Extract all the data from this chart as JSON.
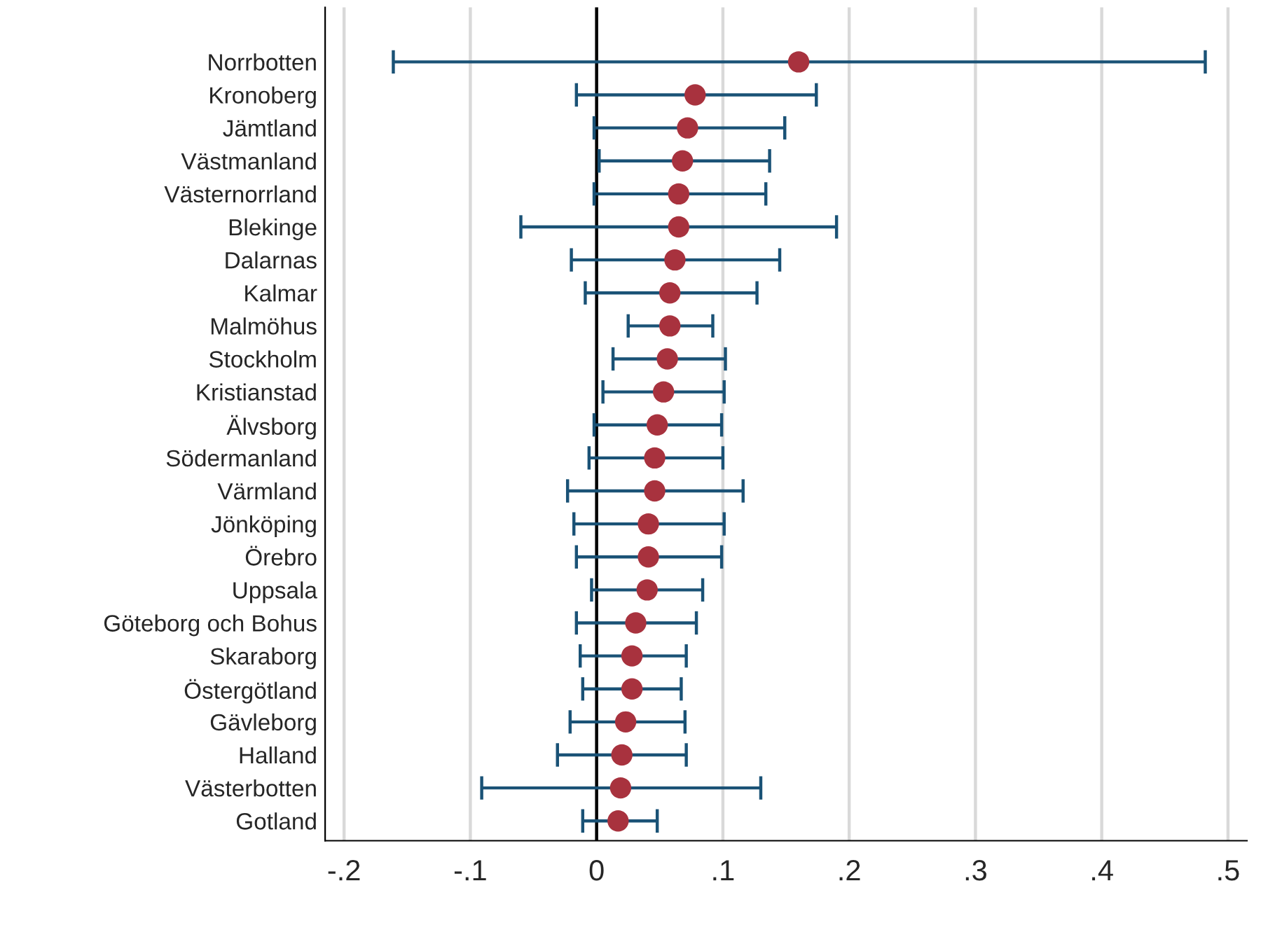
{
  "chart_data": {
    "type": "scatter",
    "orientation": "horizontal",
    "marker": "circle",
    "grid": "x",
    "categories": [
      "Norrbotten",
      "Kronoberg",
      "Jämtland",
      "Västmanland",
      "Västernorrland",
      "Blekinge",
      "Dalarnas",
      "Kalmar",
      "Malmöhus",
      "Stockholm",
      "Kristianstad",
      "Älvsborg",
      "Södermanland",
      "Värmland",
      "Jönköping",
      "Örebro",
      "Uppsala",
      "Göteborg och Bohus",
      "Skaraborg",
      "Östergötland",
      "Gävleborg",
      "Halland",
      "Västerbotten",
      "Gotland"
    ],
    "series": [
      {
        "color": "#a8323e",
        "values": [
          0.16,
          0.078,
          0.072,
          0.068,
          0.065,
          0.065,
          0.062,
          0.058,
          0.058,
          0.056,
          0.053,
          0.048,
          0.046,
          0.046,
          0.041,
          0.041,
          0.04,
          0.031,
          0.028,
          0.028,
          0.023,
          0.02,
          0.019,
          0.017
        ],
        "errors": [
          [
            -0.161,
            0.482
          ],
          [
            -0.016,
            0.174
          ],
          [
            -0.002,
            0.149
          ],
          [
            0.002,
            0.137
          ],
          [
            -0.002,
            0.134
          ],
          [
            -0.06,
            0.19
          ],
          [
            -0.02,
            0.145
          ],
          [
            -0.009,
            0.127
          ],
          [
            0.025,
            0.092
          ],
          [
            0.013,
            0.102
          ],
          [
            0.005,
            0.101
          ],
          [
            -0.002,
            0.099
          ],
          [
            -0.006,
            0.1
          ],
          [
            -0.023,
            0.116
          ],
          [
            -0.018,
            0.101
          ],
          [
            -0.016,
            0.099
          ],
          [
            -0.004,
            0.084
          ],
          [
            -0.016,
            0.079
          ],
          [
            -0.013,
            0.071
          ],
          [
            -0.011,
            0.067
          ],
          [
            -0.021,
            0.07
          ],
          [
            -0.031,
            0.071
          ],
          [
            -0.091,
            0.13
          ],
          [
            -0.011,
            0.048
          ]
        ]
      }
    ],
    "xlim": [
      -0.215,
      0.515
    ],
    "xticks": [
      {
        "value": -0.2,
        "label": "-.2"
      },
      {
        "value": -0.1,
        "label": "-.1"
      },
      0,
      {
        "value": 0.1,
        "label": ".1"
      },
      {
        "value": 0.2,
        "label": ".2"
      },
      {
        "value": 0.3,
        "label": ".3"
      },
      {
        "value": 0.4,
        "label": ".4"
      },
      {
        "value": 0.5,
        "label": ".5"
      }
    ],
    "ref_lines": [
      {
        "axis": "x",
        "value": 0,
        "color": "#000000"
      }
    ]
  }
}
